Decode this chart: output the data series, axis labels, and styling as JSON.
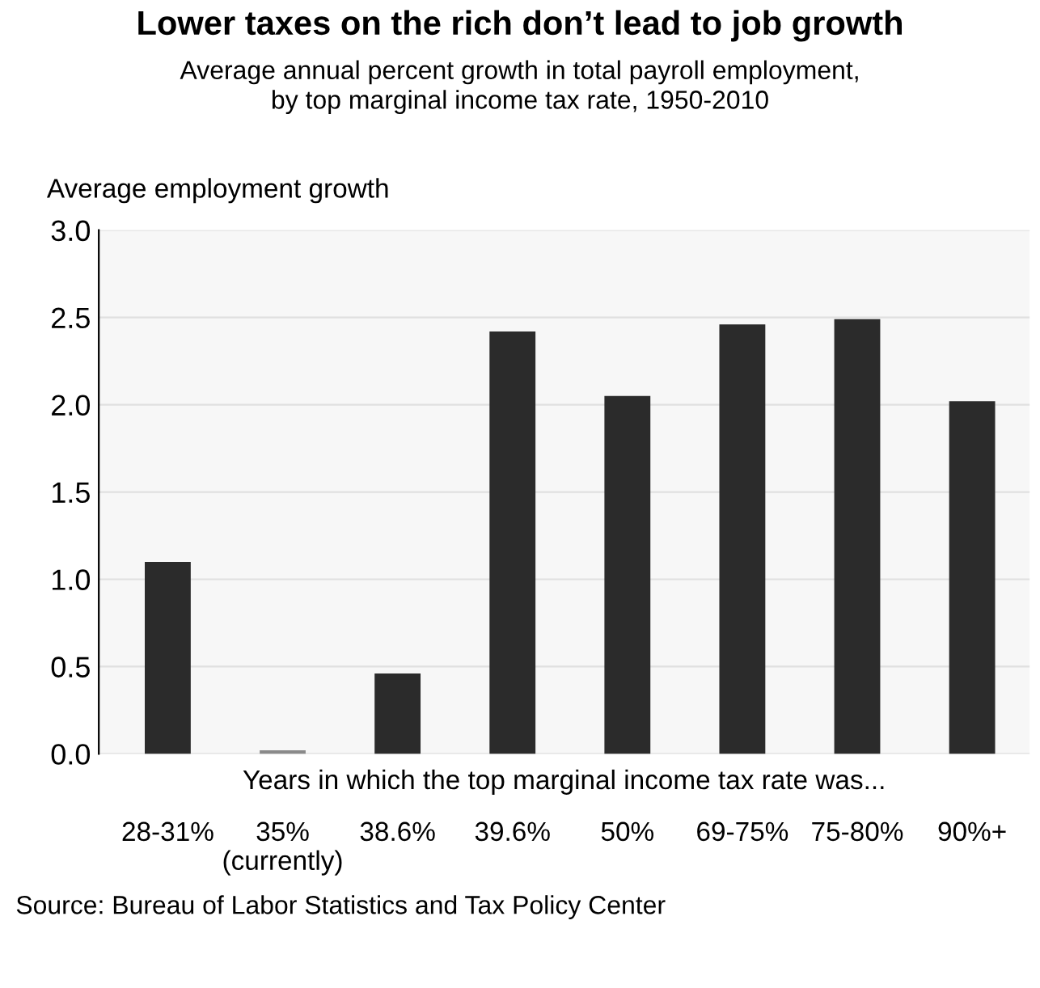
{
  "chart_data": {
    "type": "bar",
    "title": "Lower taxes on the rich don’t lead to job growth",
    "subtitle": "Average annual percent growth in total payroll employment,\nby top marginal income tax rate, 1950-2010",
    "ylabel": "Average employment growth",
    "xlabel": "Years in which the top marginal income tax rate was...",
    "categories": [
      "28-31%",
      "35%\n(currently)",
      "38.6%",
      "39.6%",
      "50%",
      "69-75%",
      "75-80%",
      "90%+"
    ],
    "values": [
      1.1,
      0.02,
      0.46,
      2.42,
      2.05,
      2.46,
      2.49,
      2.02
    ],
    "colors": [
      "#2b2b2b",
      "#8a8a8a",
      "#2b2b2b",
      "#2b2b2b",
      "#2b2b2b",
      "#2b2b2b",
      "#2b2b2b",
      "#2b2b2b"
    ],
    "ylim": [
      0,
      3.0
    ],
    "yticks": [
      {
        "value": 0,
        "label": "0.0"
      },
      {
        "value": 0.5,
        "label": "0.5"
      },
      {
        "value": 1,
        "label": "1.0"
      },
      {
        "value": 1.5,
        "label": "1.5"
      },
      {
        "value": 2,
        "label": "2.0"
      },
      {
        "value": 2.5,
        "label": "2.5"
      },
      {
        "value": 3,
        "label": "3.0"
      }
    ],
    "grid": "y",
    "annotations": [
      "Source: Bureau of Labor Statistics and Tax Policy Center"
    ]
  }
}
